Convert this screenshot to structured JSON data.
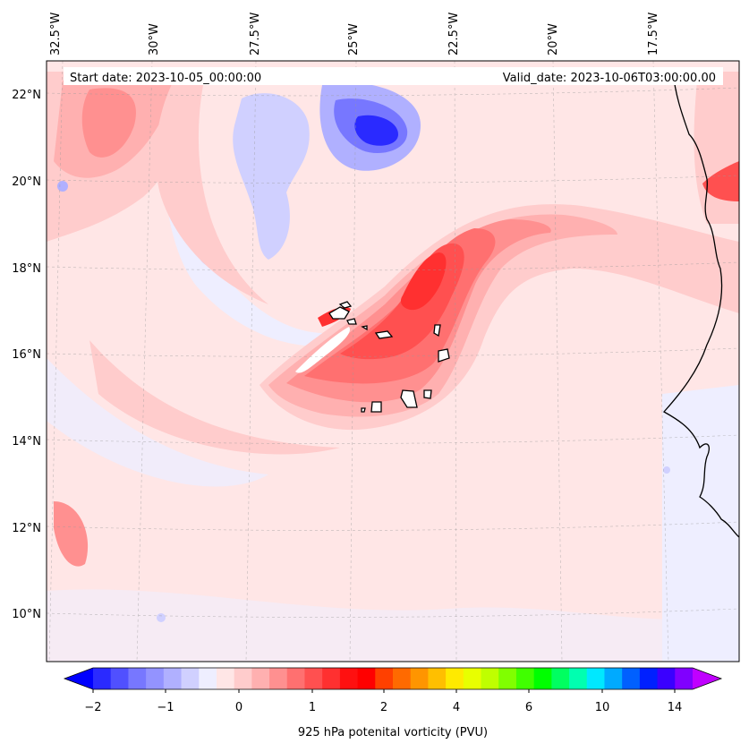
{
  "map": {
    "start_label": "Start date: 2023-10-05_00:00:00",
    "valid_label": "Valid_date: 2023-10-06T03:00:00.00",
    "lon_labels": [
      "32.5°W",
      "30°W",
      "27.5°W",
      "25°W",
      "22.5°W",
      "20°W",
      "17.5°W"
    ],
    "lat_labels": [
      "22°N",
      "20°N",
      "18°N",
      "16°N",
      "14°N",
      "12°N",
      "10°N"
    ],
    "background_color": "#ffe6e6",
    "coastline_color": "#000000"
  },
  "colorbar": {
    "label": "925 hPa potenital vorticity (PVU)",
    "tick_labels": [
      "−2",
      "−1",
      "0",
      "1",
      "2",
      "4",
      "6",
      "10",
      "14"
    ],
    "colors": [
      "#0000ff",
      "#2a2aff",
      "#5050ff",
      "#7777ff",
      "#9393ff",
      "#b0b0ff",
      "#d0d0ff",
      "#eeeeff",
      "#ffe6e6",
      "#ffcccc",
      "#ffb0b0",
      "#ff9090",
      "#ff7070",
      "#ff5050",
      "#ff3030",
      "#ff1010",
      "#ff0000",
      "#ff4000",
      "#ff6a00",
      "#ff9500",
      "#ffbf00",
      "#ffea00",
      "#e8ff00",
      "#bfff00",
      "#80ff00",
      "#40ff00",
      "#00ff00",
      "#00ff60",
      "#00ffb0",
      "#00e8ff",
      "#00aaff",
      "#0060ff",
      "#0020ff",
      "#3a00ff",
      "#8000ff",
      "#c000ff"
    ]
  }
}
